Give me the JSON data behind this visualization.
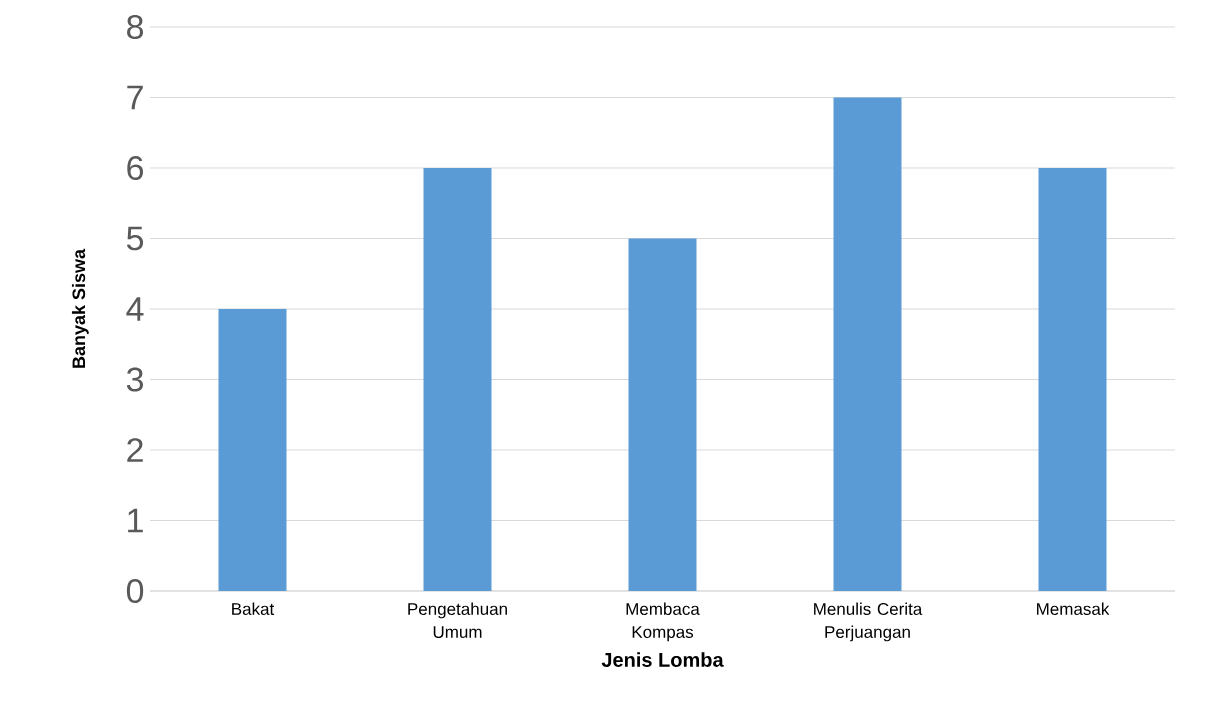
{
  "chart_data": {
    "type": "bar",
    "xlabel": "Jenis Lomba",
    "ylabel": "Banyak Siswa",
    "categories": [
      "Bakat",
      "Pengetahuan Umum",
      "Membaca Kompas",
      "Menulis Cerita Perjuangan",
      "Memasak"
    ],
    "values": [
      4,
      6,
      5,
      7,
      6
    ],
    "color": "#5b9bd5",
    "ylim": [
      0,
      8
    ],
    "yticks": [
      0,
      1,
      2,
      3,
      4,
      5,
      6,
      7,
      8
    ],
    "grid": "y"
  }
}
